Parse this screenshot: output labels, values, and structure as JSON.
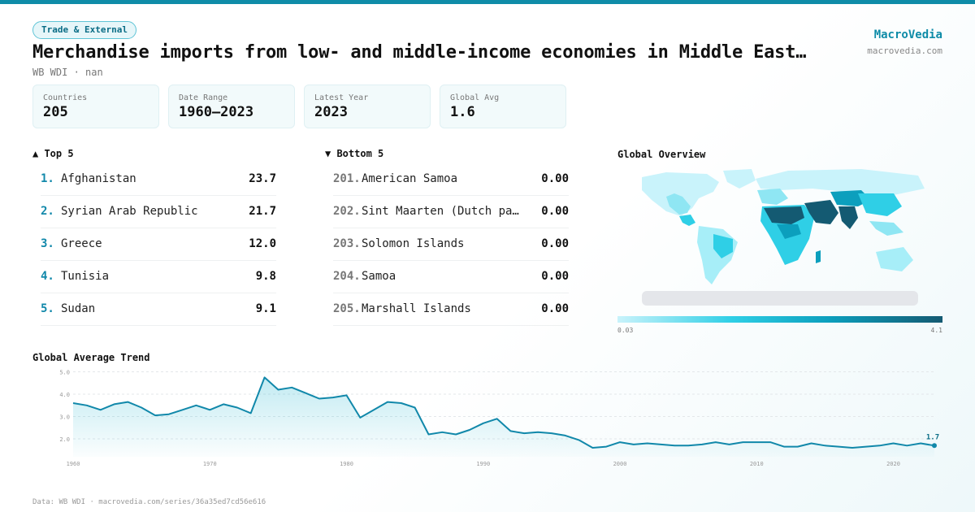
{
  "header": {
    "badge": "Trade & External",
    "title": "Merchandise imports from low- and middle-income economies in Middle East…",
    "subtitle": "WB WDI · nan",
    "brand": "MacroVedia",
    "brand_url": "macrovedia.com"
  },
  "stats": [
    {
      "label": "Countries",
      "value": "205"
    },
    {
      "label": "Date Range",
      "value": "1960–2023"
    },
    {
      "label": "Latest Year",
      "value": "2023"
    },
    {
      "label": "Global Avg",
      "value": "1.6"
    }
  ],
  "top5": {
    "heading": "▲ Top 5",
    "items": [
      {
        "rank": "1.",
        "name": "Afghanistan",
        "value": "23.7"
      },
      {
        "rank": "2.",
        "name": "Syrian Arab Republic",
        "value": "21.7"
      },
      {
        "rank": "3.",
        "name": "Greece",
        "value": "12.0"
      },
      {
        "rank": "4.",
        "name": "Tunisia",
        "value": "9.8"
      },
      {
        "rank": "5.",
        "name": "Sudan",
        "value": "9.1"
      }
    ]
  },
  "bottom5": {
    "heading": "▼ Bottom 5",
    "items": [
      {
        "rank": "201.",
        "name": "American Samoa",
        "value": "0.00"
      },
      {
        "rank": "202.",
        "name": "Sint Maarten (Dutch pa…",
        "value": "0.00"
      },
      {
        "rank": "203.",
        "name": "Solomon Islands",
        "value": "0.00"
      },
      {
        "rank": "204.",
        "name": "Samoa",
        "value": "0.00"
      },
      {
        "rank": "205.",
        "name": "Marshall Islands",
        "value": "0.00"
      }
    ]
  },
  "map": {
    "heading": "Global Overview",
    "legend_min": "0.03",
    "legend_max": "4.1",
    "colors": [
      "#c9f3fb",
      "#2fcfe6",
      "#0c9fbd",
      "#145a72"
    ]
  },
  "chart_data": {
    "type": "area",
    "title": "Global Average Trend",
    "ylim": [
      1.2,
      5.2
    ],
    "yticks": [
      2.0,
      3.0,
      4.0,
      5.0
    ],
    "ytick_labels": [
      "2.0",
      "3.0",
      "4.0",
      "5.0"
    ],
    "xticks": [
      1960,
      1970,
      1980,
      1990,
      2000,
      2010,
      2020
    ],
    "grid": true,
    "last_label": "1.7",
    "line_color": "#1188aa",
    "x": [
      1960,
      1961,
      1962,
      1963,
      1964,
      1965,
      1966,
      1967,
      1968,
      1969,
      1970,
      1971,
      1972,
      1973,
      1974,
      1975,
      1976,
      1977,
      1978,
      1979,
      1980,
      1981,
      1982,
      1983,
      1984,
      1985,
      1986,
      1987,
      1988,
      1989,
      1990,
      1991,
      1992,
      1993,
      1994,
      1995,
      1996,
      1997,
      1998,
      1999,
      2000,
      2001,
      2002,
      2003,
      2004,
      2005,
      2006,
      2007,
      2008,
      2009,
      2010,
      2011,
      2012,
      2013,
      2014,
      2015,
      2016,
      2017,
      2018,
      2019,
      2020,
      2021,
      2022,
      2023
    ],
    "y": [
      3.6,
      3.5,
      3.3,
      3.55,
      3.65,
      3.4,
      3.05,
      3.1,
      3.3,
      3.5,
      3.3,
      3.55,
      3.4,
      3.15,
      4.75,
      4.2,
      4.3,
      4.05,
      3.8,
      3.85,
      3.95,
      2.95,
      3.3,
      3.65,
      3.6,
      3.4,
      2.2,
      2.3,
      2.2,
      2.4,
      2.7,
      2.9,
      2.35,
      2.25,
      2.3,
      2.25,
      2.15,
      1.95,
      1.6,
      1.65,
      1.85,
      1.75,
      1.8,
      1.75,
      1.7,
      1.7,
      1.75,
      1.85,
      1.75,
      1.85,
      1.85,
      1.85,
      1.65,
      1.65,
      1.8,
      1.7,
      1.65,
      1.6,
      1.65,
      1.7,
      1.8,
      1.7,
      1.8,
      1.7
    ]
  },
  "footer": "Data: WB WDI · macrovedia.com/series/36a35ed7cd56e616"
}
